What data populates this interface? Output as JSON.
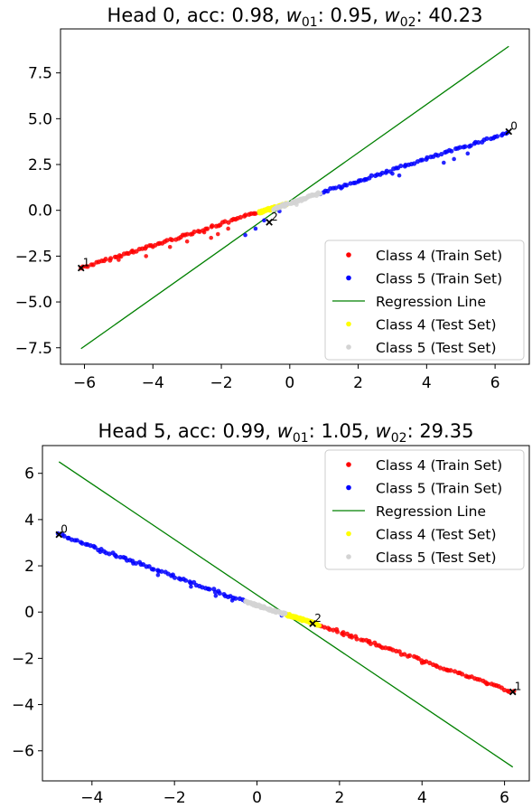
{
  "chart_data": [
    {
      "type": "scatter",
      "title": "Head 0, acc: 0.98, w01: 0.95, w02: 40.23",
      "title_parts": {
        "prefix": "Head 0, acc: 0.98, ",
        "w01_value": "0.95",
        "w02_value": "40.23",
        "w01_symbol": "w",
        "w01_sub": "01",
        "w02_symbol": "w",
        "w02_sub": "02",
        "sep": ": "
      },
      "xlim": [
        -6.7,
        7.0
      ],
      "ylim": [
        -8.4,
        9.9
      ],
      "x_ticks": [
        -6,
        -4,
        -2,
        0,
        2,
        4,
        6
      ],
      "y_ticks": [
        -7.5,
        -5.0,
        -2.5,
        0.0,
        2.5,
        5.0,
        7.5
      ],
      "x_tick_labels": [
        "−6",
        "−4",
        "−2",
        "0",
        "2",
        "4",
        "6"
      ],
      "y_tick_labels": [
        "−7.5",
        "−5.0",
        "−2.5",
        "0.0",
        "2.5",
        "5.0",
        "7.5"
      ],
      "legend_position": "lower-right",
      "legend": [
        "Class 4 (Train Set)",
        "Class 5 (Train Set)",
        "Regression Line",
        "Class 4 (Test Set)",
        "Class 5 (Test Set)"
      ],
      "colors": {
        "class4_train": "#ff0000",
        "class5_train": "#0000ff",
        "regression": "#008000",
        "class4_test": "#ffff00",
        "class5_test": "#d3d3d3",
        "marker": "#000000"
      },
      "regression_line": {
        "x": [
          -6.1,
          6.4
        ],
        "y": [
          -7.55,
          8.95
        ]
      },
      "segments": {
        "class4_train": {
          "x": [
            -6.1,
            -0.9
          ],
          "y": [
            -3.15,
            -0.1
          ]
        },
        "class5_train": {
          "x": [
            0.9,
            6.4
          ],
          "y": [
            0.95,
            4.25
          ]
        },
        "class4_test": {
          "x": [
            -0.9,
            -0.1
          ],
          "y": [
            -0.12,
            0.35
          ]
        },
        "class5_test": {
          "x": [
            -0.5,
            0.9
          ],
          "y": [
            0.05,
            0.95
          ]
        }
      },
      "outliers": {
        "class4_train": [
          [
            -4.2,
            -2.5
          ],
          [
            -4.6,
            -2.2
          ],
          [
            -2.3,
            -1.5
          ],
          [
            -2.1,
            -1.3
          ],
          [
            -3.5,
            -2.0
          ],
          [
            -5.0,
            -2.7
          ],
          [
            -4.0,
            -2.0
          ],
          [
            -1.8,
            -1.0
          ],
          [
            -2.5,
            -1.2
          ],
          [
            -3.0,
            -1.7
          ]
        ],
        "class5_train": [
          [
            -1.3,
            -1.35
          ],
          [
            -1.0,
            -1.0
          ],
          [
            -0.75,
            -0.55
          ],
          [
            -0.3,
            -0.05
          ],
          [
            2.0,
            1.55
          ],
          [
            2.2,
            1.7
          ],
          [
            3.0,
            2.0
          ],
          [
            3.2,
            1.9
          ],
          [
            4.5,
            2.6
          ],
          [
            4.8,
            2.8
          ],
          [
            1.5,
            1.2
          ],
          [
            5.2,
            3.1
          ]
        ],
        "class5_test": [
          [
            0.2,
            0.3
          ]
        ]
      },
      "markers": [
        {
          "label": "0",
          "x": 6.4,
          "y": 4.3
        },
        {
          "label": "1",
          "x": -6.1,
          "y": -3.15
        },
        {
          "label": "2",
          "x": -0.6,
          "y": -0.65
        }
      ]
    },
    {
      "type": "scatter",
      "title": "Head 5, acc: 0.99, w01: 1.05, w02: 29.35",
      "title_parts": {
        "prefix": "Head 5, acc: 0.99, ",
        "w01_value": "1.05",
        "w02_value": "29.35",
        "w01_symbol": "w",
        "w01_sub": "01",
        "w02_symbol": "w",
        "w02_sub": "02",
        "sep": ": "
      },
      "xlim": [
        -5.2,
        6.6
      ],
      "ylim": [
        -7.3,
        7.2
      ],
      "x_ticks": [
        -4,
        -2,
        0,
        2,
        4,
        6
      ],
      "y_ticks": [
        -6,
        -4,
        -2,
        0,
        2,
        4,
        6
      ],
      "x_tick_labels": [
        "−4",
        "−2",
        "0",
        "2",
        "4",
        "6"
      ],
      "y_tick_labels": [
        "−6",
        "−4",
        "−2",
        "0",
        "2",
        "4",
        "6"
      ],
      "legend_position": "upper-right",
      "legend": [
        "Class 4 (Train Set)",
        "Class 5 (Train Set)",
        "Regression Line",
        "Class 4 (Test Set)",
        "Class 5 (Test Set)"
      ],
      "colors": {
        "class4_train": "#ff0000",
        "class5_train": "#0000ff",
        "regression": "#008000",
        "class4_test": "#ffff00",
        "class5_test": "#d3d3d3",
        "marker": "#000000"
      },
      "regression_line": {
        "x": [
          -4.8,
          6.2
        ],
        "y": [
          6.5,
          -6.7
        ]
      },
      "segments": {
        "class5_train": {
          "x": [
            -4.8,
            -0.3
          ],
          "y": [
            3.35,
            0.45
          ]
        },
        "class5_test": {
          "x": [
            -0.3,
            0.7
          ],
          "y": [
            0.45,
            -0.1
          ]
        },
        "class4_test": {
          "x": [
            0.7,
            1.5
          ],
          "y": [
            -0.1,
            -0.55
          ]
        },
        "class4_train": {
          "x": [
            1.5,
            6.2
          ],
          "y": [
            -0.55,
            -3.45
          ]
        }
      },
      "outliers": {
        "class5_train": [
          [
            -1.6,
            1.1
          ],
          [
            -1.0,
            0.7
          ],
          [
            -3.0,
            2.1
          ],
          [
            -2.4,
            1.6
          ],
          [
            0.6,
            -0.15
          ],
          [
            -0.6,
            0.5
          ],
          [
            -3.8,
            2.6
          ],
          [
            0.9,
            -0.25
          ]
        ],
        "class4_train": [
          [
            2.1,
            -1.0
          ],
          [
            2.3,
            -1.1
          ],
          [
            4.0,
            -2.2
          ],
          [
            4.6,
            -2.5
          ],
          [
            3.0,
            -1.5
          ],
          [
            5.1,
            -2.8
          ],
          [
            2.7,
            -1.3
          ],
          [
            5.6,
            -3.1
          ]
        ]
      },
      "markers": [
        {
          "label": "0",
          "x": -4.8,
          "y": 3.35
        },
        {
          "label": "1",
          "x": 6.2,
          "y": -3.45
        },
        {
          "label": "2",
          "x": 1.35,
          "y": -0.5
        }
      ]
    }
  ]
}
